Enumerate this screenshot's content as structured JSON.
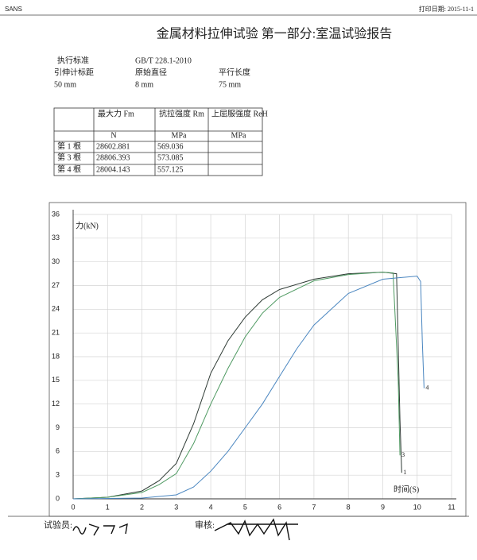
{
  "header": {
    "brand": "SANS",
    "print_date": "打印日期: 2015-11-1"
  },
  "title": "金属材料拉伸试验  第一部分:室温试验报告",
  "info": {
    "standard_label": "执行标准",
    "standard": "GB/T 228.1-2010",
    "gauge_label": "引伸计标距",
    "diameter_label": "原始直径",
    "parallel_label": "平行长度",
    "gauge": "50 mm",
    "diameter": "8 mm",
    "parallel": "75 mm"
  },
  "table": {
    "header": [
      "最大力 Fm",
      "抗拉强度 Rm",
      "上屈服强度 ReH"
    ],
    "units": [
      "N",
      "MPa",
      "MPa"
    ],
    "rows": [
      [
        "第 1 根",
        "28602.881",
        "569.036"
      ],
      [
        "第 3 根",
        "28806.393",
        "573.085"
      ],
      [
        "第 4 根",
        "28004.143",
        "557.125"
      ]
    ]
  },
  "chart": {
    "type": "line",
    "y_label": "力(kN)",
    "x_label": "时间(S)",
    "xlim": [
      0,
      11
    ],
    "ylim": [
      0,
      36
    ],
    "xticks": [
      0,
      1,
      2,
      3,
      4,
      5,
      6,
      7,
      8,
      9,
      10,
      11
    ],
    "yticks": [
      0,
      3,
      6,
      9,
      12,
      15,
      18,
      21,
      24,
      27,
      30,
      33,
      36
    ],
    "grid": true,
    "series": [
      {
        "name": "1",
        "color": "#2e3a34",
        "x": [
          0,
          1,
          2,
          2.5,
          3,
          3.5,
          4,
          4.5,
          5,
          5.5,
          6,
          7,
          8,
          9,
          9.4,
          9.5,
          9.55
        ],
        "values": [
          0,
          0.2,
          1,
          2.3,
          4.5,
          9.5,
          15.9,
          20,
          23,
          25.2,
          26.5,
          27.8,
          28.5,
          28.7,
          28.5,
          10,
          3.3
        ]
      },
      {
        "name": "3",
        "color": "#4f9a62",
        "x": [
          0,
          1,
          2,
          2.5,
          3,
          3.5,
          4,
          4.5,
          5,
          5.5,
          6,
          7,
          8,
          9,
          9.3,
          9.45,
          9.5
        ],
        "values": [
          0,
          0.2,
          0.8,
          1.8,
          3.2,
          7,
          12,
          16.5,
          20.5,
          23.5,
          25.5,
          27.6,
          28.4,
          28.7,
          28.6,
          15,
          5.5
        ]
      },
      {
        "name": "4",
        "color": "#4a86c0",
        "x": [
          0,
          2,
          3,
          3.5,
          4,
          4.5,
          5,
          5.5,
          6,
          6.5,
          7,
          8,
          9,
          10,
          10.1,
          10.15,
          10.2
        ],
        "values": [
          0,
          0.1,
          0.5,
          1.5,
          3.5,
          6,
          9,
          12,
          15.5,
          19,
          22,
          26,
          27.8,
          28.2,
          27.5,
          20,
          14
        ]
      }
    ]
  },
  "footer": {
    "tester": "试验员:",
    "reviewer": "审核:"
  }
}
